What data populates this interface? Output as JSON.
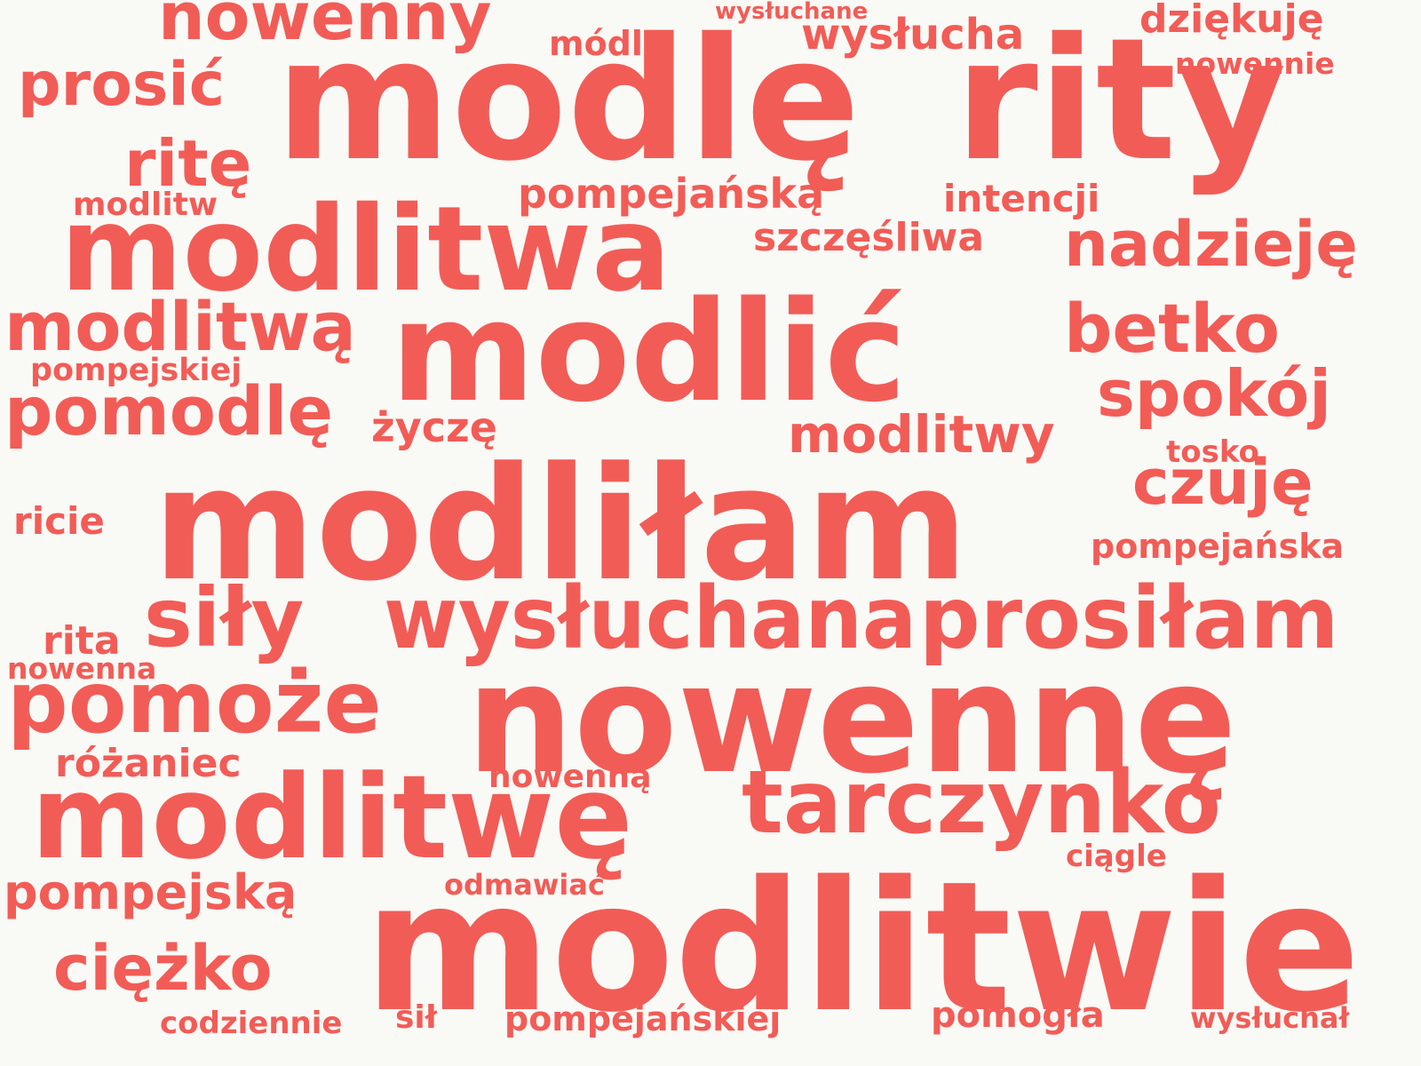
{
  "accent_color": "#f25c56",
  "background_color": "#f9f9f6",
  "words": [
    {
      "text": "modlitwie"
    },
    {
      "text": "nowennę"
    },
    {
      "text": "modliłam"
    },
    {
      "text": "modlić"
    },
    {
      "text": "modlę"
    },
    {
      "text": "rity"
    },
    {
      "text": "modlitwa"
    },
    {
      "text": "modlitwę"
    },
    {
      "text": "wysłuchana"
    },
    {
      "text": "prosiłam"
    },
    {
      "text": "tarczynko"
    },
    {
      "text": "pomoże"
    },
    {
      "text": "nowenny"
    },
    {
      "text": "modlitwą"
    },
    {
      "text": "pomodlę"
    },
    {
      "text": "siły"
    },
    {
      "text": "nadzieję"
    },
    {
      "text": "betko"
    },
    {
      "text": "spokój"
    },
    {
      "text": "czuję"
    },
    {
      "text": "prosić"
    },
    {
      "text": "ritę"
    },
    {
      "text": "ciężko"
    },
    {
      "text": "pompejską"
    },
    {
      "text": "modlitwy"
    },
    {
      "text": "wysłucha"
    },
    {
      "text": "pompejańską"
    },
    {
      "text": "szczęśliwa"
    },
    {
      "text": "intencji"
    },
    {
      "text": "dziękuję"
    },
    {
      "text": "życzę"
    },
    {
      "text": "różaniec"
    },
    {
      "text": "pompejańska"
    },
    {
      "text": "pomogła"
    },
    {
      "text": "rita"
    },
    {
      "text": "ricie"
    },
    {
      "text": "pompejańskiej"
    },
    {
      "text": "modlitw"
    },
    {
      "text": "pompejskiej"
    },
    {
      "text": "nowenną"
    },
    {
      "text": "nowennie"
    },
    {
      "text": "tosko"
    },
    {
      "text": "ciągle"
    },
    {
      "text": "módl"
    },
    {
      "text": "nowenna"
    },
    {
      "text": "odmawiać"
    },
    {
      "text": "codziennie"
    },
    {
      "text": "sił"
    },
    {
      "text": "wysłuchał"
    },
    {
      "text": "wysłuchane"
    }
  ]
}
